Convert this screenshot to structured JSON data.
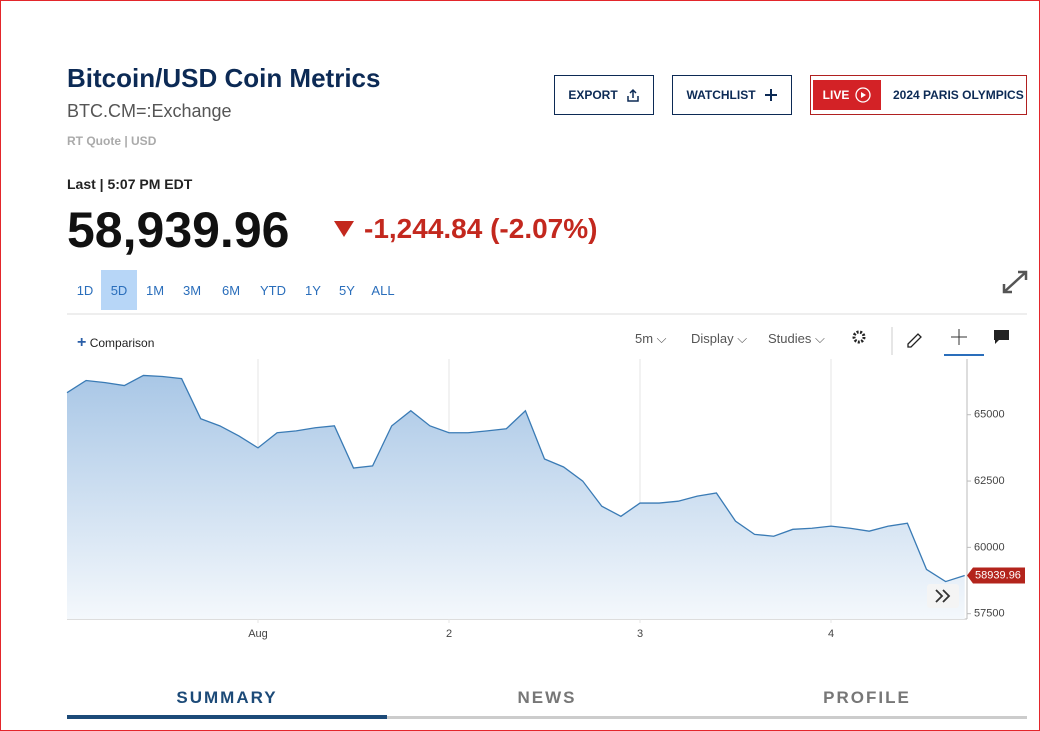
{
  "header": {
    "title": "Bitcoin/USD Coin Metrics",
    "symbol": "BTC.CM=:Exchange",
    "quote_type": "RT Quote | USD",
    "buttons": [
      "EXPORT",
      "WATCHLIST"
    ],
    "live": {
      "badge": "LIVE",
      "label": "2024 PARIS OLYMPICS"
    }
  },
  "quote": {
    "last_label": "Last | 5:07 PM EDT",
    "price": "58,939.96",
    "change": "-1,244.84 (-2.07%)"
  },
  "ranges": [
    "1D",
    "5D",
    "1M",
    "3M",
    "6M",
    "YTD",
    "1Y",
    "5Y",
    "ALL"
  ],
  "selected_range": 1,
  "toolbar": {
    "comparison": "Comparison",
    "interval": "5m",
    "display": "Display",
    "studies": "Studies"
  },
  "tabs": [
    "SUMMARY",
    "NEWS",
    "PROFILE"
  ],
  "active_tab": 0,
  "chart_data": {
    "type": "line",
    "color": "#3a7bb5",
    "categories": [
      null,
      null,
      null,
      null,
      null,
      null,
      null,
      null,
      null,
      null,
      "Aug",
      null,
      null,
      null,
      null,
      null,
      null,
      null,
      null,
      null,
      "2",
      null,
      null,
      null,
      null,
      null,
      null,
      null,
      null,
      null,
      "3",
      null,
      null,
      null,
      null,
      null,
      null,
      null,
      null,
      null,
      "4",
      null,
      null,
      null,
      null,
      null,
      null,
      null
    ],
    "values": [
      65830,
      66290,
      66210,
      66100,
      66480,
      66440,
      66360,
      64850,
      64580,
      64200,
      63750,
      64320,
      64390,
      64510,
      64580,
      62990,
      63070,
      64580,
      65150,
      64580,
      64320,
      64320,
      64390,
      64470,
      65150,
      63330,
      63030,
      62500,
      61550,
      61170,
      61670,
      61670,
      61740,
      61930,
      62050,
      60990,
      60490,
      60420,
      60680,
      60720,
      60800,
      60720,
      60610,
      60800,
      60910,
      59170,
      58710,
      58939.96
    ],
    "last_value_label": "58939.96",
    "ylim": [
      57300,
      67100
    ],
    "yticks": [
      57500,
      60000,
      62500,
      65000
    ]
  }
}
